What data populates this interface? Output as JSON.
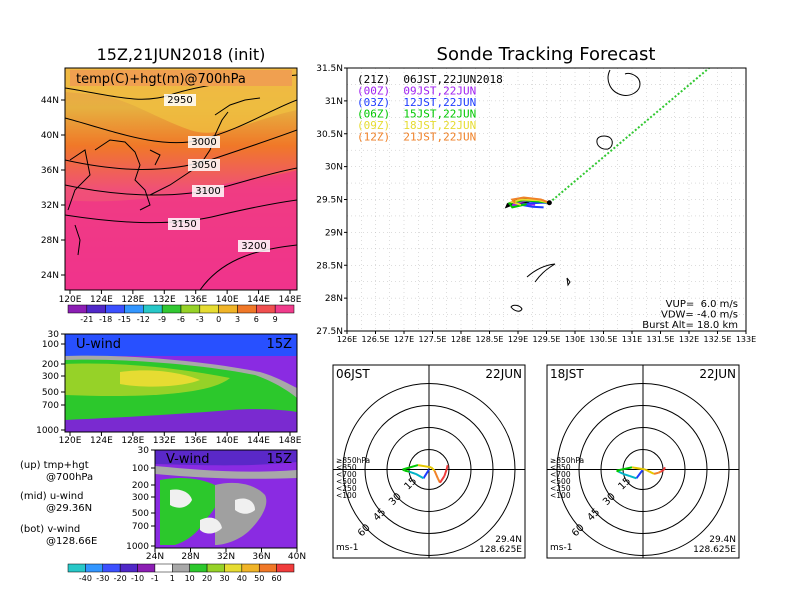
{
  "chart_data": [
    {
      "type": "heatmap",
      "title": "15Z,21JUN2018 (init)",
      "inner_title": "temp(C)+hgt(m)@700hPa",
      "xticks": [
        "120E",
        "124E",
        "128E",
        "132E",
        "136E",
        "140E",
        "144E",
        "148E"
      ],
      "yticks": [
        "24N",
        "28N",
        "32N",
        "36N",
        "40N",
        "44N"
      ],
      "contours": [
        {
          "label": "2950",
          "value": 2950
        },
        {
          "label": "3000",
          "value": 3000
        },
        {
          "label": "3050",
          "value": 3050
        },
        {
          "label": "3100",
          "value": 3100
        },
        {
          "label": "3150",
          "value": 3150
        },
        {
          "label": "3200",
          "value": 3200
        }
      ],
      "colorbar_labels": [
        "-21",
        "-18",
        "-15",
        "-12",
        "-9",
        "-6",
        "-3",
        "0",
        "3",
        "6",
        "9"
      ]
    },
    {
      "type": "heatmap",
      "label": "U-wind",
      "time": "15Z",
      "yticks": [
        "30",
        "100",
        "200",
        "300",
        "500",
        "700",
        "1000"
      ],
      "xticks": [
        "120E",
        "124E",
        "128E",
        "132E",
        "136E",
        "140E",
        "144E",
        "148E"
      ]
    },
    {
      "type": "heatmap",
      "label": "V-wind",
      "time": "15Z",
      "yticks": [
        "30",
        "100",
        "200",
        "300",
        "500",
        "700",
        "1000"
      ],
      "xticks": [
        "24N",
        "28N",
        "32N",
        "36N",
        "40N"
      ],
      "colorbar_labels": [
        "-40",
        "-30",
        "-20",
        "-10",
        "-1",
        "1",
        "10",
        "20",
        "30",
        "40",
        "50",
        "60"
      ]
    },
    {
      "type": "line",
      "title": "Sonde Tracking Forecast",
      "xticks": [
        "126E",
        "126.5E",
        "127E",
        "127.5E",
        "128E",
        "128.5E",
        "129E",
        "129.5E",
        "130E",
        "130.5E",
        "131E",
        "131.5E",
        "132E",
        "132.5E",
        "133E"
      ],
      "yticks": [
        "27.5N",
        "28N",
        "28.5N",
        "29N",
        "29.5N",
        "30N",
        "30.5N",
        "31N",
        "31.5N"
      ],
      "xlim": [
        126,
        133
      ],
      "ylim": [
        27.5,
        31.5
      ],
      "launch": {
        "lon": 129.55,
        "lat": 29.45
      },
      "series": [
        {
          "name": "(21Z)  06JST,22JUN2018",
          "color": "#000000",
          "points": [
            [
              129.38,
              29.47
            ],
            [
              129.15,
              29.52
            ],
            [
              128.95,
              29.48
            ],
            [
              128.82,
              29.43
            ],
            [
              128.8,
              29.39
            ],
            [
              128.95,
              29.44
            ],
            [
              129.2,
              29.46
            ]
          ]
        },
        {
          "name": "(00Z)  09JST,22JUN",
          "color": "#a020f0",
          "points": [
            [
              129.38,
              29.46
            ],
            [
              129.15,
              29.48
            ],
            [
              128.98,
              29.45
            ],
            [
              128.9,
              29.41
            ],
            [
              129.1,
              29.43
            ],
            [
              129.3,
              29.42
            ]
          ]
        },
        {
          "name": "(03Z)  12JST,22JUN",
          "color": "#1e3cff",
          "points": [
            [
              129.4,
              29.45
            ],
            [
              129.2,
              29.44
            ],
            [
              129.05,
              29.42
            ],
            [
              129.25,
              29.39
            ],
            [
              129.45,
              29.38
            ]
          ]
        },
        {
          "name": "(06Z)  15JST,22JUN",
          "color": "#00c800",
          "points": [
            [
              129.35,
              29.47
            ],
            [
              129.1,
              29.49
            ],
            [
              128.85,
              29.44
            ],
            [
              128.9,
              29.38
            ],
            [
              129.15,
              29.43
            ]
          ]
        },
        {
          "name": "(09Z)  18JST,22JUN",
          "color": "#e6dc32",
          "points": [
            [
              129.35,
              29.49
            ],
            [
              129.05,
              29.5
            ],
            [
              128.9,
              29.46
            ],
            [
              129.05,
              29.42
            ]
          ]
        },
        {
          "name": "(12Z)  21JST,22JUN",
          "color": "#f08228",
          "points": [
            [
              129.4,
              29.5
            ],
            [
              129.1,
              29.53
            ],
            [
              128.9,
              29.5
            ],
            [
              128.95,
              29.45
            ]
          ]
        }
      ],
      "ascent": {
        "color": "#32c832",
        "end": [
          132.9,
          31.9
        ]
      },
      "info": [
        "VUP=  6.0 m/s",
        "VDW= -4.0 m/s",
        "Burst Alt= 18.0 km"
      ]
    },
    {
      "type": "scatter",
      "polar": true,
      "left_label": "06JST",
      "right_label": "22JUN",
      "ring_labels": [
        "15",
        "30",
        "45",
        "60"
      ],
      "legend": [
        "≥850hPa",
        "<850",
        "<700",
        "<500",
        "<250",
        "<100"
      ],
      "legend_colors": [
        "#f03c3c",
        "#f08228",
        "#e6c800",
        "#00c800",
        "#00b4c8",
        "#1e3cff"
      ],
      "unit": "ms-1",
      "loc_lat": "29.4N",
      "loc_lon": "128.625E",
      "hodograph": [
        [
          0.0,
          0.0
        ],
        [
          -5,
          -8
        ],
        [
          -12,
          -4
        ],
        [
          -18,
          -2
        ],
        [
          -22,
          -1
        ],
        [
          -24,
          0
        ],
        [
          -10,
          4
        ],
        [
          2,
          2
        ],
        [
          5,
          -1
        ],
        [
          8,
          -8
        ],
        [
          10,
          -12
        ],
        [
          14,
          -6
        ],
        [
          16,
          0
        ],
        [
          17,
          4
        ]
      ]
    },
    {
      "type": "scatter",
      "polar": true,
      "left_label": "18JST",
      "right_label": "22JUN",
      "ring_labels": [
        "15",
        "30",
        "45",
        "60"
      ],
      "legend": [
        "≥850hPa",
        "<850",
        "<700",
        "<500",
        "<250",
        "<100"
      ],
      "legend_colors": [
        "#f03c3c",
        "#f08228",
        "#e6c800",
        "#00c800",
        "#00b4c8",
        "#1e3cff"
      ],
      "unit": "ms-1",
      "loc_lat": "29.4N",
      "loc_lon": "128.625E",
      "hodograph": [
        [
          0,
          0
        ],
        [
          -6,
          -8
        ],
        [
          -12,
          -6
        ],
        [
          -18,
          -4
        ],
        [
          -22,
          -2
        ],
        [
          -24,
          -1
        ],
        [
          -10,
          2
        ],
        [
          2,
          0
        ],
        [
          6,
          -2
        ],
        [
          10,
          -4
        ],
        [
          14,
          -3
        ],
        [
          16,
          -2
        ],
        [
          18,
          -1
        ],
        [
          19,
          0
        ],
        [
          20,
          2
        ]
      ]
    }
  ],
  "captions": {
    "up": [
      "(up)  tmp+hgt",
      "@700hPa"
    ],
    "mid": [
      "(mid)  u-wind",
      "@29.36N"
    ],
    "bot": [
      "(bot)  v-wind",
      "@128.66E"
    ]
  }
}
